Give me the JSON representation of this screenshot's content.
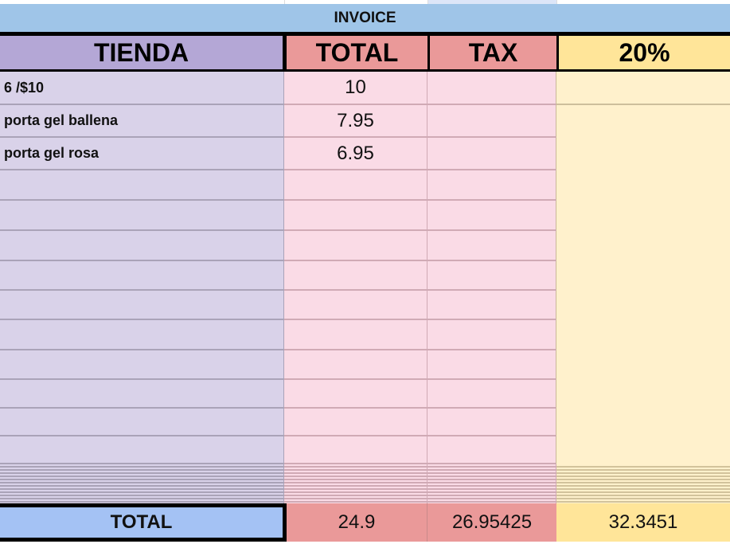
{
  "sheet": {
    "banner": "INVOICE",
    "headers": [
      "TIENDA",
      "TOTAL",
      "TAX",
      "20%"
    ],
    "rows": [
      {
        "tienda": "6 /$10",
        "total": "10"
      },
      {
        "tienda": "porta gel ballena",
        "total": "7.95"
      },
      {
        "tienda": "porta gel rosa",
        "total": "6.95"
      }
    ],
    "totals": {
      "label": "TOTAL",
      "total": "24.9",
      "tax": "26.95425",
      "pct": "32.3451"
    }
  },
  "colors": {
    "banner": "#9fc5e8",
    "tienda": "#b4a7d6",
    "total_header": "#ea9999",
    "pct_header": "#ffe599",
    "total_label": "#a4c2f4"
  }
}
